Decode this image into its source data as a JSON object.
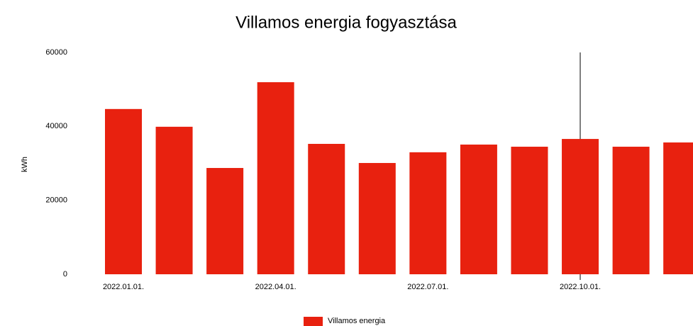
{
  "chart_data": {
    "type": "bar",
    "title": "Villamos energia fogyasztása",
    "ylabel": "kWh",
    "categories": [
      "2022.01.01.",
      null,
      null,
      "2022.04.01.",
      null,
      null,
      "2022.07.01.",
      null,
      null,
      "2022.10.01.",
      null,
      null
    ],
    "series": [
      {
        "name": "Villamos energia",
        "color": "#e8210f",
        "values": [
          44700,
          39900,
          28750,
          51950,
          35270,
          30100,
          33000,
          35080,
          34500,
          36600,
          34500,
          35650
        ]
      }
    ],
    "ylim": [
      0,
      60000
    ],
    "yticks": [
      0,
      20000,
      40000,
      60000
    ],
    "grid": false,
    "legend": "bottom"
  }
}
